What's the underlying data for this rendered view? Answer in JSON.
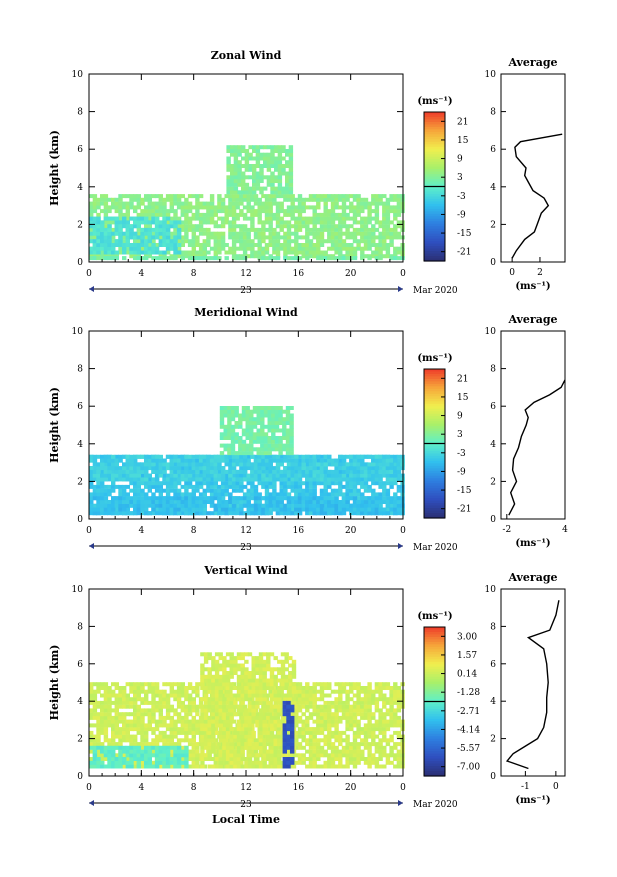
{
  "figure": {
    "xaxis_title": "Local Time",
    "date_label": "Mar 2020",
    "day_label": "23",
    "avg_title": "Average",
    "ylabel": "Height (km)",
    "unit_label": "(ms⁻¹)",
    "avg_unit_label": "(ms⁻¹)"
  },
  "chart_data": [
    {
      "type": "heatmap",
      "title": "Zonal Wind",
      "xlabel": "",
      "ylabel": "Height (km)",
      "x_ticks": [
        "0",
        "4",
        "8",
        "12",
        "16",
        "20",
        "0"
      ],
      "x_range": [
        0,
        24
      ],
      "y_ticks": [
        "0",
        "2",
        "4",
        "6",
        "8",
        "10"
      ],
      "y_range": [
        0,
        10
      ],
      "colorbar": {
        "label": "(ms⁻¹)",
        "ticks": [
          "21",
          "15",
          "9",
          "3",
          "-3",
          "-9",
          "-15",
          "-21"
        ],
        "range": [
          -24,
          24
        ]
      },
      "regions": [
        {
          "t0": 0,
          "t1": 24,
          "h0": 0.2,
          "h1": 3.6,
          "value": 4
        },
        {
          "t0": 0,
          "t1": 7,
          "h0": 0.4,
          "h1": 2.4,
          "value": -2
        },
        {
          "t0": 10.5,
          "t1": 15.5,
          "h0": 3.6,
          "h1": 6.1,
          "value": 3
        },
        {
          "t0": 0,
          "t1": 24,
          "h0": 0.1,
          "h1": 0.3,
          "value": 2
        }
      ],
      "average": {
        "x_ticks": [
          "0",
          "2"
        ],
        "x_range": [
          -0.8,
          3.8
        ],
        "profile": [
          {
            "h": 0.2,
            "v": 0.0
          },
          {
            "h": 0.6,
            "v": 0.3
          },
          {
            "h": 1.2,
            "v": 0.9
          },
          {
            "h": 1.6,
            "v": 1.6
          },
          {
            "h": 2.0,
            "v": 1.8
          },
          {
            "h": 2.6,
            "v": 2.1
          },
          {
            "h": 3.0,
            "v": 2.6
          },
          {
            "h": 3.4,
            "v": 2.3
          },
          {
            "h": 3.8,
            "v": 1.5
          },
          {
            "h": 4.2,
            "v": 1.2
          },
          {
            "h": 4.6,
            "v": 0.9
          },
          {
            "h": 5.0,
            "v": 1.0
          },
          {
            "h": 5.6,
            "v": 0.3
          },
          {
            "h": 6.1,
            "v": 0.2
          },
          {
            "h": 6.4,
            "v": 0.6
          },
          {
            "h": 6.8,
            "v": 3.6
          }
        ]
      }
    },
    {
      "type": "heatmap",
      "title": "Meridional Wind",
      "xlabel": "",
      "ylabel": "Height (km)",
      "x_ticks": [
        "0",
        "4",
        "8",
        "12",
        "16",
        "20",
        "0"
      ],
      "x_range": [
        0,
        24
      ],
      "y_ticks": [
        "0",
        "2",
        "4",
        "6",
        "8",
        "10"
      ],
      "y_range": [
        0,
        10
      ],
      "colorbar": {
        "label": "(ms⁻¹)",
        "ticks": [
          "21",
          "15",
          "9",
          "3",
          "-3",
          "-9",
          "-15",
          "-21"
        ],
        "range": [
          -24,
          24
        ]
      },
      "regions": [
        {
          "t0": 0,
          "t1": 24,
          "h0": 0.2,
          "h1": 3.4,
          "value": -5
        },
        {
          "t0": 0,
          "t1": 24,
          "h0": 2.0,
          "h1": 3.3,
          "value": -4
        },
        {
          "t0": 10,
          "t1": 15.5,
          "h0": 3.4,
          "h1": 6.0,
          "value": 2
        },
        {
          "t0": 0,
          "t1": 24,
          "h0": 0.2,
          "h1": 1.2,
          "value": -6
        }
      ],
      "average": {
        "x_ticks": [
          "-2",
          "4"
        ],
        "x_range": [
          -2.6,
          4.0
        ],
        "profile": [
          {
            "h": 0.2,
            "v": -1.8
          },
          {
            "h": 0.8,
            "v": -1.2
          },
          {
            "h": 1.4,
            "v": -1.6
          },
          {
            "h": 2.0,
            "v": -1.0
          },
          {
            "h": 2.6,
            "v": -1.4
          },
          {
            "h": 3.2,
            "v": -1.3
          },
          {
            "h": 3.8,
            "v": -0.8
          },
          {
            "h": 4.4,
            "v": -0.5
          },
          {
            "h": 5.0,
            "v": 0.0
          },
          {
            "h": 5.4,
            "v": 0.2
          },
          {
            "h": 5.8,
            "v": -0.1
          },
          {
            "h": 6.2,
            "v": 0.8
          },
          {
            "h": 6.6,
            "v": 2.4
          },
          {
            "h": 7.0,
            "v": 3.6
          },
          {
            "h": 7.4,
            "v": 4.0
          }
        ]
      }
    },
    {
      "type": "heatmap",
      "title": "Vertical Wind",
      "xlabel": "Local Time",
      "ylabel": "Height (km)",
      "x_ticks": [
        "0",
        "4",
        "8",
        "12",
        "16",
        "20",
        "0"
      ],
      "x_range": [
        0,
        24
      ],
      "y_ticks": [
        "0",
        "2",
        "4",
        "6",
        "8",
        "10"
      ],
      "y_range": [
        0,
        10
      ],
      "colorbar": {
        "label": "(ms⁻¹)",
        "ticks": [
          "3.00",
          "1.57",
          "0.14",
          "-1.28",
          "-2.71",
          "-4.14",
          "-5.57",
          "-7.00"
        ],
        "range": [
          -8,
          4
        ]
      },
      "regions": [
        {
          "t0": 0,
          "t1": 24,
          "h0": 0.4,
          "h1": 5.0,
          "value": 0.3
        },
        {
          "t0": 8.5,
          "t1": 15.5,
          "h0": 0.4,
          "h1": 6.6,
          "value": 0.4
        },
        {
          "t0": 0,
          "t1": 7.5,
          "h0": 0.4,
          "h1": 1.5,
          "value": -2.0
        },
        {
          "t0": 14.8,
          "t1": 15.4,
          "h0": 0.4,
          "h1": 4.0,
          "value": -6.5
        }
      ],
      "average": {
        "x_ticks": [
          "-1",
          "0"
        ],
        "x_range": [
          -1.8,
          0.3
        ],
        "profile": [
          {
            "h": 0.4,
            "v": -0.9
          },
          {
            "h": 0.8,
            "v": -1.6
          },
          {
            "h": 1.2,
            "v": -1.4
          },
          {
            "h": 1.6,
            "v": -1.0
          },
          {
            "h": 2.0,
            "v": -0.6
          },
          {
            "h": 2.6,
            "v": -0.4
          },
          {
            "h": 3.4,
            "v": -0.3
          },
          {
            "h": 4.2,
            "v": -0.3
          },
          {
            "h": 5.0,
            "v": -0.25
          },
          {
            "h": 6.0,
            "v": -0.3
          },
          {
            "h": 6.8,
            "v": -0.4
          },
          {
            "h": 7.4,
            "v": -0.9
          },
          {
            "h": 7.8,
            "v": -0.2
          },
          {
            "h": 8.6,
            "v": 0.0
          },
          {
            "h": 9.4,
            "v": 0.1
          }
        ]
      }
    }
  ]
}
